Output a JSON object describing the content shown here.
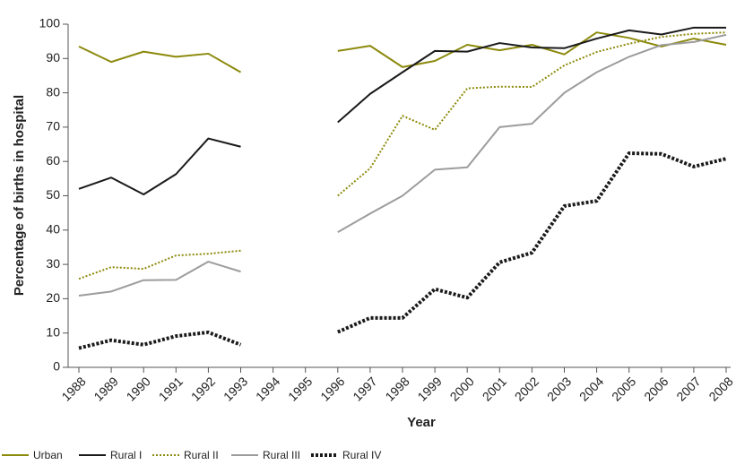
{
  "chart_data": {
    "type": "line",
    "x_label": "Year",
    "y_label": "Percentage of births in hospital",
    "categories": [
      "1988",
      "1989",
      "1990",
      "1991",
      "1992",
      "1993",
      "1994",
      "1995",
      "1996",
      "1997",
      "1998",
      "1999",
      "2000",
      "2001",
      "2002",
      "2003",
      "2004",
      "2005",
      "2006",
      "2007",
      "2008"
    ],
    "series": [
      {
        "name": "Urban",
        "color": "#8c8a0c",
        "style": "solid",
        "values": [
          93.5,
          89,
          92,
          90.5,
          91.4,
          86,
          null,
          null,
          92.2,
          93.7,
          87.5,
          89.3,
          94,
          92.4,
          94,
          91.2,
          97.6,
          96,
          93.5,
          95.8,
          94
        ]
      },
      {
        "name": "Rural I",
        "color": "#1a1a1a",
        "style": "solid",
        "values": [
          52,
          55.3,
          50.4,
          56.3,
          66.7,
          64.3,
          null,
          null,
          71.4,
          79.7,
          86,
          92.2,
          92,
          94.5,
          93.2,
          93,
          95.8,
          98.2,
          97,
          99,
          99
        ]
      },
      {
        "name": "Rural II",
        "color": "#8c8a0c",
        "style": "dotted",
        "values": [
          25.8,
          29.2,
          28.7,
          32.6,
          33.1,
          34,
          null,
          null,
          50,
          58,
          73.3,
          69.2,
          81.3,
          81.8,
          81.7,
          88,
          91.9,
          94.3,
          96.3,
          97.2,
          97.6
        ]
      },
      {
        "name": "Rural III",
        "color": "#9c9c9c",
        "style": "solid",
        "values": [
          20.9,
          22.1,
          25.4,
          25.5,
          30.8,
          27.9,
          null,
          null,
          39.4,
          44.8,
          50,
          57.6,
          58.3,
          70,
          71,
          80,
          86,
          90.5,
          93.9,
          94.8,
          96.9
        ]
      },
      {
        "name": "Rural IV",
        "color": "#1a1a1a",
        "style": "heavy-dotted",
        "values": [
          5.6,
          7.9,
          6.6,
          9.1,
          10.2,
          6.6,
          null,
          null,
          10.3,
          14.4,
          14.4,
          22.8,
          20.3,
          30.6,
          33.4,
          47,
          48.5,
          62.4,
          62.2,
          58.5,
          60.8
        ]
      }
    ],
    "ylim": [
      0,
      100
    ],
    "yticks": [
      0,
      10,
      20,
      30,
      40,
      50,
      60,
      70,
      80,
      90,
      100
    ],
    "grid": false,
    "legend": "bottom"
  }
}
